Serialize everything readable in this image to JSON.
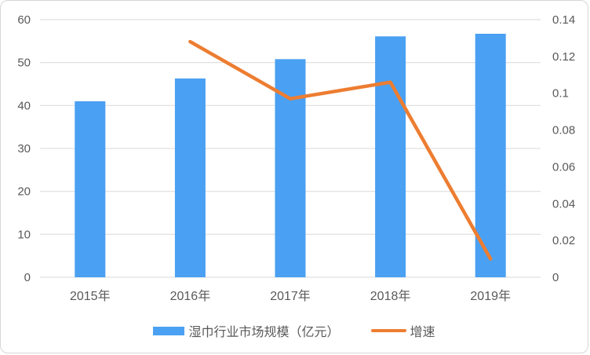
{
  "chart_data": {
    "type": "bar",
    "subtype": "bar+line dual-axis",
    "categories": [
      "2015年",
      "2016年",
      "2017年",
      "2018年",
      "2019年"
    ],
    "series": [
      {
        "name": "湿巾行业市场规模（亿元）",
        "type": "bar",
        "axis": "left",
        "values": [
          41.0,
          46.3,
          50.8,
          56.1,
          56.7
        ],
        "color": "#4aa0f2"
      },
      {
        "name": "增速",
        "type": "line",
        "axis": "right",
        "values": [
          null,
          0.128,
          0.097,
          0.106,
          0.01
        ],
        "color": "#ed7d31"
      }
    ],
    "title": "",
    "xlabel": "",
    "ylabel_left": "",
    "ylabel_right": "",
    "left_axis": {
      "min": 0,
      "max": 60,
      "ticks": [
        "0",
        "10",
        "20",
        "30",
        "40",
        "50",
        "60"
      ]
    },
    "right_axis": {
      "min": 0,
      "max": 0.14,
      "ticks": [
        "0",
        "0.02",
        "0.04",
        "0.06",
        "0.08",
        "0.1",
        "0.12",
        "0.14"
      ]
    },
    "grid": true,
    "legend_position": "bottom"
  },
  "legend": {
    "bar_label": "湿巾行业市场规模（亿元）",
    "line_label": "增速"
  },
  "colors": {
    "bar": "#4aa0f2",
    "line": "#ed7d31",
    "grid": "#d9d9d9",
    "text": "#595959",
    "border": "#d6d6d6",
    "background": "#ffffff"
  }
}
